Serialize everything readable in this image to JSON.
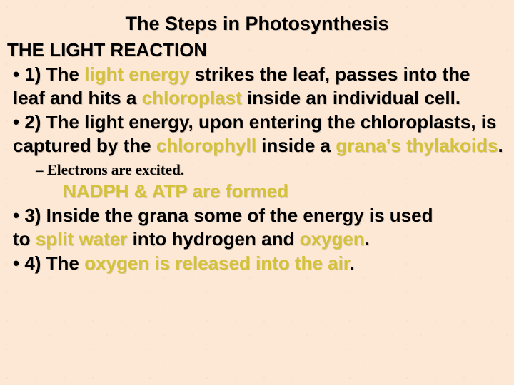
{
  "title": {
    "text": "The Steps in Photosynthesis",
    "fontsize": 27
  },
  "subtitle": {
    "text": "THE LIGHT REACTION",
    "fontsize": 26
  },
  "colors": {
    "background": "#fce8d4",
    "text": "#000000",
    "keyword": "#d4c23a"
  },
  "fontsizes": {
    "bullet": 26,
    "sub": 21,
    "line2": 26
  },
  "b1": {
    "pre": "•   1) The ",
    "kw1": "light energy",
    "mid1": " strikes the leaf, passes into the leaf and hits a ",
    "kw2": "chloroplast",
    "post": " inside an individual cell."
  },
  "b2": {
    "pre": "•   2) The light energy, upon entering the chloroplasts, is captured by the ",
    "kw1": "chlorophyll",
    "mid": " inside a ",
    "kw2": "grana's thylakoids",
    "post": "."
  },
  "sub1": {
    "text": "–  Electrons are   excited."
  },
  "line2": {
    "kw": "NADPH  & ATP are formed"
  },
  "b3": {
    "pre": "•   3) Inside the grana some of the energy is used to ",
    "kw1": "split water",
    "mid": " into hydrogen and ",
    "kw2": "oxygen",
    "post": "."
  },
  "b4": {
    "pre": "•   4) The ",
    "kw1": "oxygen is released into the air",
    "post": "."
  }
}
